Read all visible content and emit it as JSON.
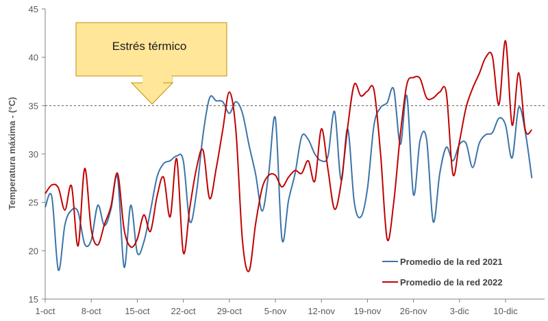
{
  "chart_data": {
    "type": "line",
    "title": "",
    "xlabel": "",
    "ylabel": "Temperatura máxima - (°C)",
    "ylim": [
      15,
      45
    ],
    "y_ticks": [
      15,
      20,
      25,
      30,
      35,
      40,
      45
    ],
    "x_tick_labels": [
      "1-oct",
      "8-oct",
      "15-oct",
      "22-oct",
      "29-oct",
      "5-nov",
      "12-nov",
      "19-nov",
      "26-nov",
      "3-dic",
      "10-dic"
    ],
    "x_unit": "days since 1-oct",
    "threshold": 35,
    "annotation": "Estrés térmico",
    "legend_position": "bottom-right",
    "series": [
      {
        "name": "Promedio de la red 2021",
        "color": "#3A73A8",
        "points": [
          [
            0,
            24.5
          ],
          [
            1,
            25.6
          ],
          [
            2,
            18
          ],
          [
            3,
            22.7
          ],
          [
            4,
            24.2
          ],
          [
            5,
            24
          ],
          [
            6,
            20.7
          ],
          [
            7,
            21.1
          ],
          [
            8,
            24.7
          ],
          [
            9,
            22.6
          ],
          [
            10,
            24.3
          ],
          [
            11,
            27.6
          ],
          [
            12,
            18.3
          ],
          [
            13,
            24.7
          ],
          [
            14,
            19.8
          ],
          [
            15,
            20.9
          ],
          [
            16,
            24.1
          ],
          [
            17,
            27.6
          ],
          [
            18,
            29
          ],
          [
            19,
            29.3
          ],
          [
            20,
            29.8
          ],
          [
            21,
            29.3
          ],
          [
            22,
            23
          ],
          [
            23,
            26
          ],
          [
            24,
            32
          ],
          [
            25,
            35.8
          ],
          [
            26,
            35.5
          ],
          [
            27,
            35.4
          ],
          [
            28,
            34.2
          ],
          [
            29,
            35.4
          ],
          [
            30,
            34.2
          ],
          [
            31,
            30.9
          ],
          [
            32,
            27.9
          ],
          [
            33,
            24.1
          ],
          [
            34,
            28.1
          ],
          [
            35,
            33.7
          ],
          [
            36,
            21.2
          ],
          [
            37,
            25.2
          ],
          [
            38,
            28
          ],
          [
            39,
            31.8
          ],
          [
            40,
            31.5
          ],
          [
            41,
            30
          ],
          [
            42,
            29.3
          ],
          [
            43,
            29.8
          ],
          [
            44,
            34.4
          ],
          [
            45,
            27.3
          ],
          [
            46,
            32.6
          ],
          [
            47,
            25
          ],
          [
            48,
            23.5
          ],
          [
            49,
            26.4
          ],
          [
            50,
            33
          ],
          [
            51,
            34.8
          ],
          [
            52,
            35.3
          ],
          [
            53,
            36.7
          ],
          [
            54,
            31
          ],
          [
            55,
            36
          ],
          [
            56,
            25.8
          ],
          [
            57,
            31.4
          ],
          [
            58,
            31.5
          ],
          [
            59,
            23
          ],
          [
            60,
            28
          ],
          [
            61,
            30.7
          ],
          [
            62,
            29.3
          ],
          [
            63,
            31
          ],
          [
            64,
            31.1
          ],
          [
            65,
            28.6
          ],
          [
            66,
            31.1
          ],
          [
            67,
            32
          ],
          [
            68,
            32.2
          ],
          [
            69,
            33.7
          ],
          [
            70,
            33
          ],
          [
            71,
            29.6
          ],
          [
            72,
            34.8
          ],
          [
            73,
            32.3
          ],
          [
            74,
            27.5
          ]
        ]
      },
      {
        "name": "Promedio de la red 2022",
        "color": "#C00000",
        "points": [
          [
            0,
            25.9
          ],
          [
            1,
            26.8
          ],
          [
            2,
            26.5
          ],
          [
            3,
            24.2
          ],
          [
            4,
            26.7
          ],
          [
            5,
            20.5
          ],
          [
            6,
            28.5
          ],
          [
            7,
            22.2
          ],
          [
            8,
            20.6
          ],
          [
            9,
            22.7
          ],
          [
            10,
            24.6
          ],
          [
            11,
            28
          ],
          [
            12,
            22.2
          ],
          [
            13,
            20.4
          ],
          [
            14,
            21.2
          ],
          [
            15,
            23.7
          ],
          [
            16,
            22
          ],
          [
            17,
            25.6
          ],
          [
            18,
            27.6
          ],
          [
            19,
            23.5
          ],
          [
            20,
            29.5
          ],
          [
            21,
            19.8
          ],
          [
            22,
            24.5
          ],
          [
            23,
            28.5
          ],
          [
            24,
            30.4
          ],
          [
            25,
            25.4
          ],
          [
            26,
            28.5
          ],
          [
            27,
            32.5
          ],
          [
            28,
            36.4
          ],
          [
            29,
            32.4
          ],
          [
            30,
            21
          ],
          [
            31,
            17.9
          ],
          [
            32,
            22.8
          ],
          [
            33,
            26.5
          ],
          [
            34,
            27.8
          ],
          [
            35,
            27.8
          ],
          [
            36,
            26.6
          ],
          [
            37,
            27.6
          ],
          [
            38,
            28.3
          ],
          [
            39,
            28
          ],
          [
            40,
            29.3
          ],
          [
            41,
            27.2
          ],
          [
            42,
            32.6
          ],
          [
            43,
            28.4
          ],
          [
            44,
            24.3
          ],
          [
            45,
            27
          ],
          [
            46,
            32.8
          ],
          [
            47,
            37.2
          ],
          [
            48,
            36
          ],
          [
            49,
            36.5
          ],
          [
            50,
            36.6
          ],
          [
            51,
            30
          ],
          [
            52,
            21.2
          ],
          [
            53,
            25
          ],
          [
            54,
            32
          ],
          [
            55,
            37.2
          ],
          [
            56,
            37.9
          ],
          [
            57,
            37.8
          ],
          [
            58,
            35.8
          ],
          [
            59,
            35.8
          ],
          [
            60,
            36.4
          ],
          [
            61,
            36.3
          ],
          [
            62,
            27.9
          ],
          [
            63,
            31.3
          ],
          [
            64,
            34.8
          ],
          [
            65,
            36.8
          ],
          [
            66,
            38.3
          ],
          [
            67,
            40
          ],
          [
            68,
            40.1
          ],
          [
            69,
            35.1
          ],
          [
            70,
            41.7
          ],
          [
            71,
            33
          ],
          [
            72,
            38.4
          ],
          [
            73,
            32.5
          ],
          [
            74,
            32.5
          ]
        ]
      }
    ]
  }
}
